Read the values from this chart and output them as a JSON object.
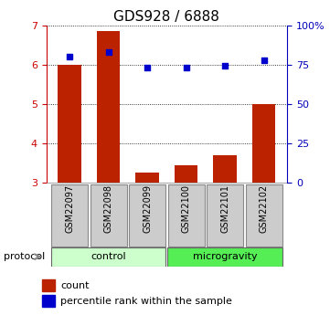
{
  "title": "GDS928 / 6888",
  "samples": [
    "GSM22097",
    "GSM22098",
    "GSM22099",
    "GSM22100",
    "GSM22101",
    "GSM22102"
  ],
  "bar_heights": [
    6.0,
    6.85,
    3.25,
    3.45,
    3.7,
    5.0
  ],
  "bar_bottom": 3.0,
  "percentile_values": [
    80,
    83,
    73,
    73,
    74,
    78
  ],
  "ylim_left": [
    3,
    7
  ],
  "ylim_right": [
    0,
    100
  ],
  "yticks_left": [
    3,
    4,
    5,
    6,
    7
  ],
  "yticks_right": [
    0,
    25,
    50,
    75,
    100
  ],
  "ytick_labels_right": [
    "0",
    "25",
    "50",
    "75",
    "100%"
  ],
  "bar_color": "#bb2200",
  "dot_color": "#0000cc",
  "control_samples": 3,
  "microgravity_samples": 3,
  "control_label": "control",
  "microgravity_label": "microgravity",
  "control_color": "#ccffcc",
  "microgravity_color": "#55ee55",
  "protocol_label": "protocol",
  "legend_count": "count",
  "legend_percentile": "percentile rank within the sample",
  "left_axis_color": "#cc0000",
  "right_axis_color": "#0000bb",
  "title_fontsize": 11,
  "tick_fontsize": 8,
  "label_fontsize": 7,
  "bar_width": 0.6
}
